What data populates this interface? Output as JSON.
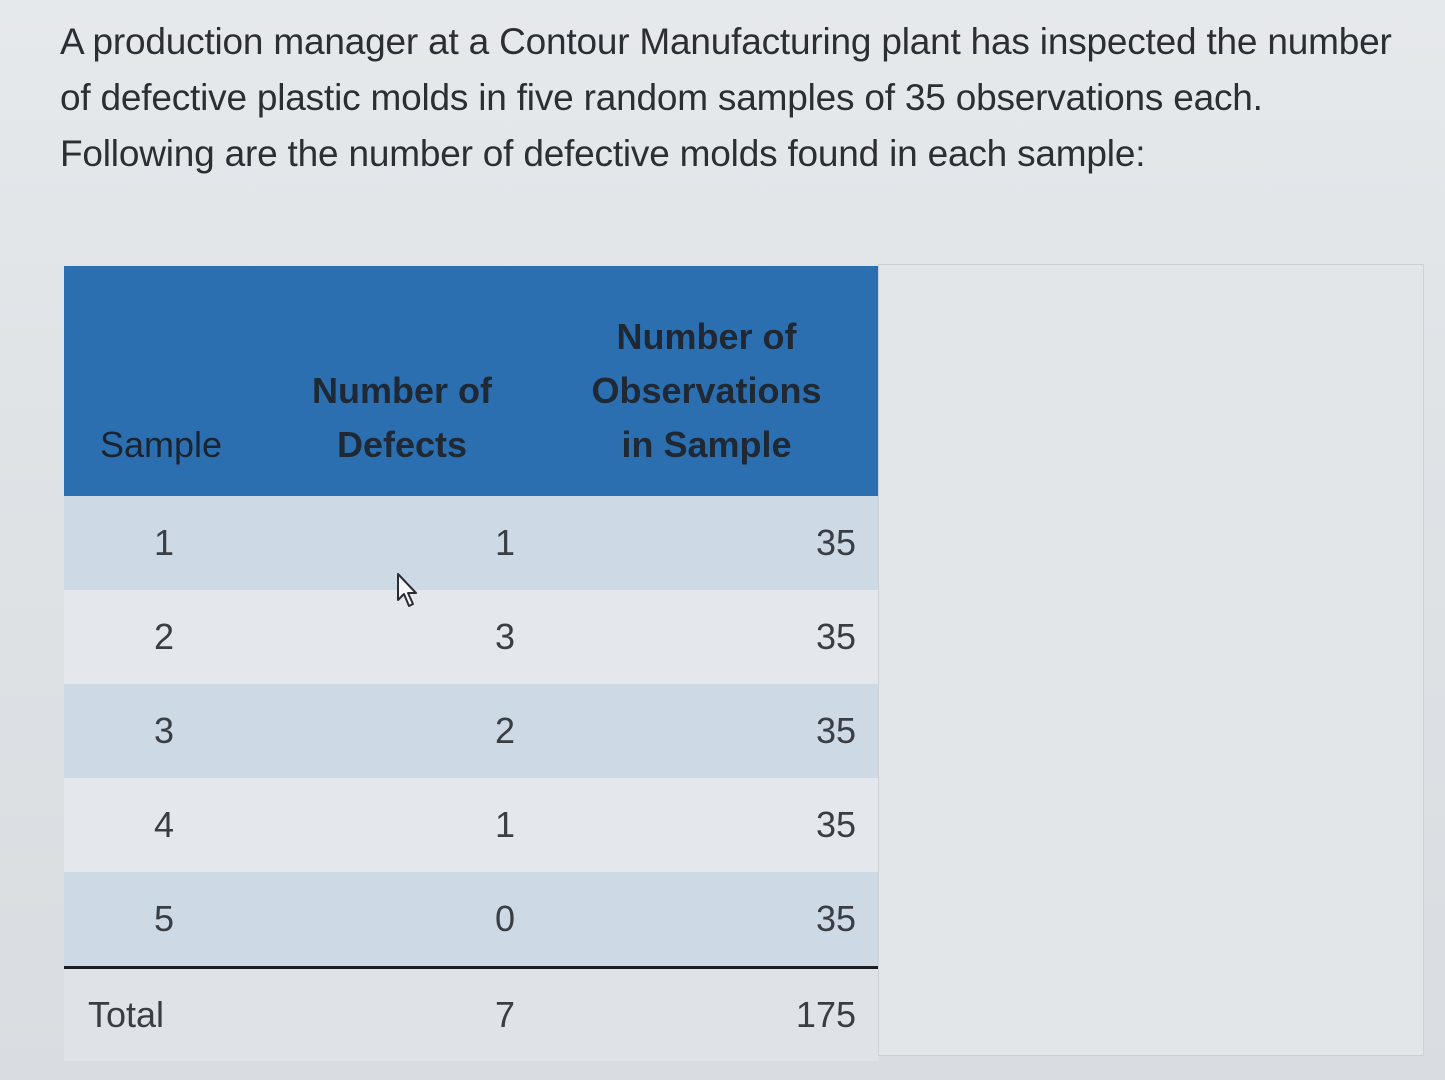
{
  "question": "A production manager at a Contour Manufacturing plant has inspected the number of defective plastic molds in five random samples of 35 observations each. Following are the number of defective molds found in each sample:",
  "table": {
    "headers": {
      "sample": "Sample",
      "defects_line1": "Number of",
      "defects_line2": "Defects",
      "obs_line1": "Number of",
      "obs_line2": "Observations",
      "obs_line3": "in Sample"
    },
    "rows": [
      {
        "sample": "1",
        "defects": "1",
        "observations": "35"
      },
      {
        "sample": "2",
        "defects": "3",
        "observations": "35"
      },
      {
        "sample": "3",
        "defects": "2",
        "observations": "35"
      },
      {
        "sample": "4",
        "defects": "1",
        "observations": "35"
      },
      {
        "sample": "5",
        "defects": "0",
        "observations": "35"
      }
    ],
    "total": {
      "label": "Total",
      "defects": "7",
      "observations": "175"
    }
  },
  "colors": {
    "header_bg": "#2c6fb0",
    "row_odd": "#cdd9e5",
    "row_even": "#e4e8ec"
  },
  "cursor_icon": "mouse-pointer-icon"
}
